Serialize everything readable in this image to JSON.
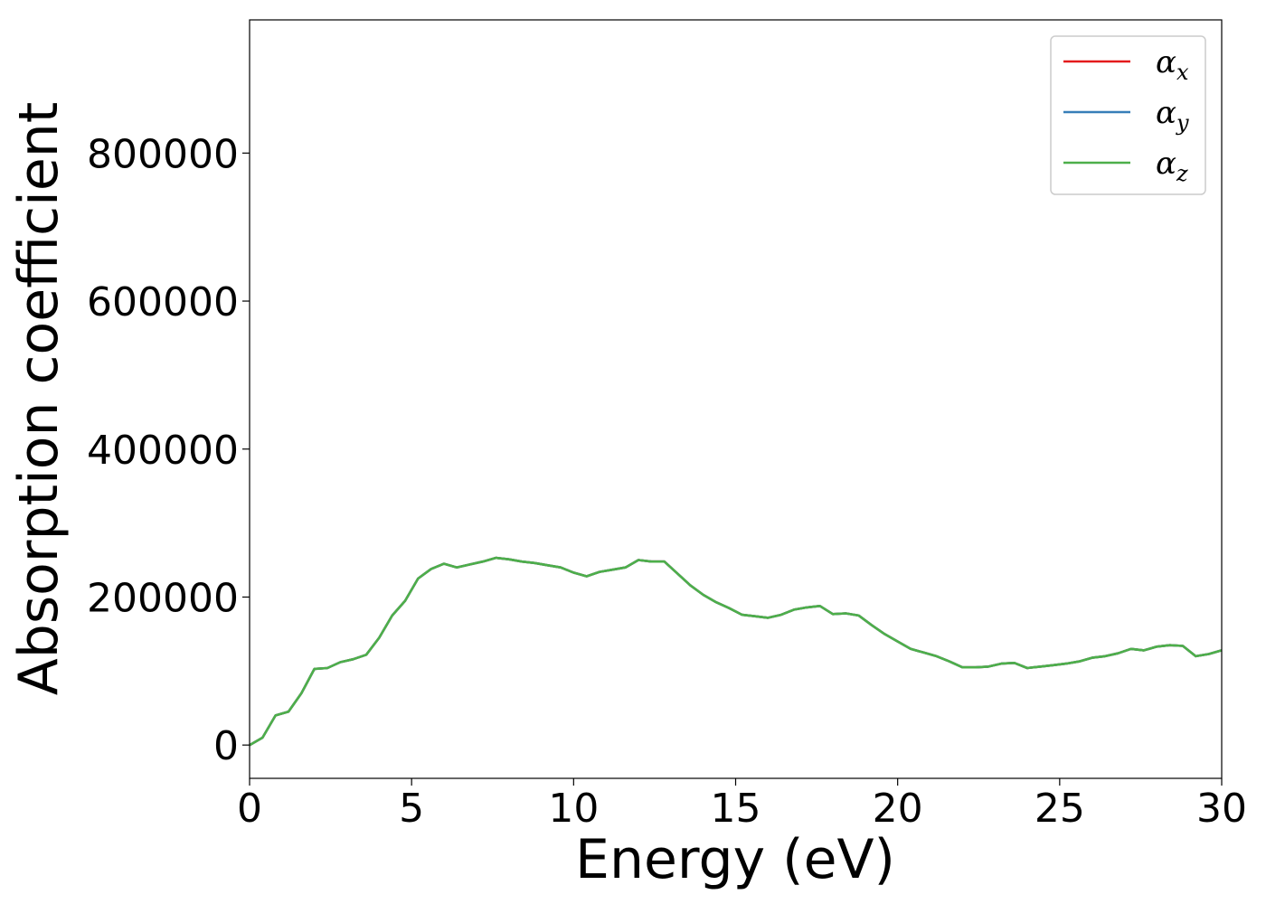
{
  "chart_data": {
    "type": "line",
    "xlabel": "Energy (eV)",
    "ylabel": "Absorption coefficient",
    "xlim": [
      0,
      30
    ],
    "ylim": [
      -45000,
      980000
    ],
    "xticks": [
      0,
      5,
      10,
      15,
      20,
      25,
      30
    ],
    "xtick_labels": [
      "0",
      "5",
      "10",
      "15",
      "20",
      "25",
      "30"
    ],
    "yticks": [
      0,
      200000,
      400000,
      600000,
      800000
    ],
    "ytick_labels": [
      "0",
      "200000",
      "400000",
      "600000",
      "800000"
    ],
    "grid": false,
    "legend_position": "top-right",
    "x": [
      0,
      0.4,
      0.8,
      1.2,
      1.6,
      2.0,
      2.4,
      2.8,
      3.2,
      3.6,
      4.0,
      4.4,
      4.8,
      5.2,
      5.6,
      6.0,
      6.4,
      6.8,
      7.2,
      7.6,
      8.0,
      8.4,
      8.8,
      9.2,
      9.6,
      10.0,
      10.4,
      10.8,
      11.2,
      11.6,
      12.0,
      12.4,
      12.8,
      13.2,
      13.6,
      14.0,
      14.4,
      14.8,
      15.2,
      15.6,
      16.0,
      16.4,
      16.8,
      17.2,
      17.6,
      18.0,
      18.4,
      18.8,
      19.2,
      19.6,
      20.0,
      20.4,
      20.8,
      21.2,
      21.6,
      22.0,
      22.4,
      22.8,
      23.2,
      23.6,
      24.0,
      24.4,
      24.8,
      25.2,
      25.6,
      26.0,
      26.4,
      26.8,
      27.2,
      27.6,
      28.0,
      28.4,
      28.8,
      29.2,
      29.6,
      30.0
    ],
    "series": [
      {
        "name": "αx",
        "color": "#e41a1c",
        "values": [
          0,
          10000,
          40000,
          45000,
          70000,
          103000,
          104000,
          112000,
          116000,
          122000,
          145000,
          175000,
          195000,
          225000,
          238000,
          245000,
          240000,
          244000,
          248000,
          253000,
          251000,
          248000,
          246000,
          243000,
          240000,
          233000,
          228000,
          234000,
          237000,
          240000,
          250000,
          248000,
          248000,
          232000,
          216000,
          203000,
          193000,
          185000,
          176000,
          174000,
          172000,
          176000,
          183000,
          186000,
          188000,
          177000,
          178000,
          175000,
          162000,
          150000,
          140000,
          130000,
          125000,
          120000,
          113000,
          105000,
          105000,
          106000,
          110000,
          111000,
          104000,
          106000,
          108000,
          110000,
          113000,
          118000,
          120000,
          124000,
          130000,
          128000,
          133000,
          135000,
          134000,
          120000,
          123000,
          128000
        ]
      },
      {
        "name": "αy",
        "color": "#377eb8",
        "values": [
          0,
          10000,
          40000,
          45000,
          70000,
          103000,
          104000,
          112000,
          116000,
          122000,
          145000,
          175000,
          195000,
          225000,
          238000,
          245000,
          240000,
          244000,
          248000,
          253000,
          251000,
          248000,
          246000,
          243000,
          240000,
          233000,
          228000,
          234000,
          237000,
          240000,
          250000,
          248000,
          248000,
          232000,
          216000,
          203000,
          193000,
          185000,
          176000,
          174000,
          172000,
          176000,
          183000,
          186000,
          188000,
          177000,
          178000,
          175000,
          162000,
          150000,
          140000,
          130000,
          125000,
          120000,
          113000,
          105000,
          105000,
          106000,
          110000,
          111000,
          104000,
          106000,
          108000,
          110000,
          113000,
          118000,
          120000,
          124000,
          130000,
          128000,
          133000,
          135000,
          134000,
          120000,
          123000,
          128000
        ]
      },
      {
        "name": "αz",
        "color": "#4daf4a",
        "values": [
          0,
          10000,
          40000,
          45000,
          70000,
          103000,
          104000,
          112000,
          116000,
          122000,
          145000,
          175000,
          195000,
          225000,
          238000,
          245000,
          240000,
          244000,
          248000,
          253000,
          251000,
          248000,
          246000,
          243000,
          240000,
          233000,
          228000,
          234000,
          237000,
          240000,
          250000,
          248000,
          248000,
          232000,
          216000,
          203000,
          193000,
          185000,
          176000,
          174000,
          172000,
          176000,
          183000,
          186000,
          188000,
          177000,
          178000,
          175000,
          162000,
          150000,
          140000,
          130000,
          125000,
          120000,
          113000,
          105000,
          105000,
          106000,
          110000,
          111000,
          104000,
          106000,
          108000,
          110000,
          113000,
          118000,
          120000,
          124000,
          130000,
          128000,
          133000,
          135000,
          134000,
          120000,
          123000,
          128000
        ]
      }
    ],
    "legend": [
      {
        "symbol": "α",
        "subscript": "x",
        "color": "#e41a1c"
      },
      {
        "symbol": "α",
        "subscript": "y",
        "color": "#377eb8"
      },
      {
        "symbol": "α",
        "subscript": "z",
        "color": "#4daf4a"
      }
    ]
  }
}
